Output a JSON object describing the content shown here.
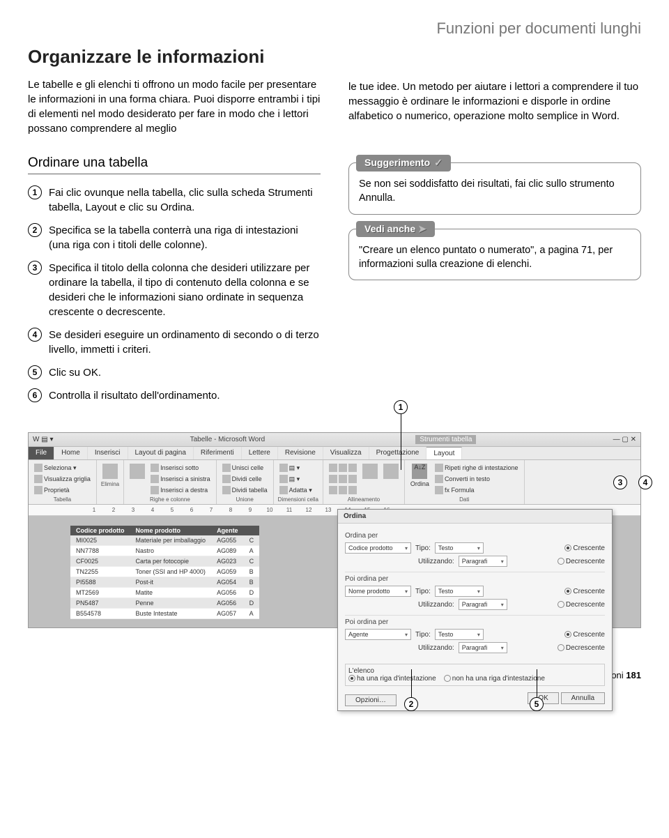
{
  "chapter_title": "Funzioni per documenti lunghi",
  "heading": "Organizzare le informazioni",
  "intro_left": "Le tabelle e gli elenchi ti offrono un modo facile per presentare le informazioni in una forma chiara. Puoi disporre entrambi i tipi di elementi nel modo desiderato per fare in modo che i lettori possano comprendere al meglio",
  "intro_right": "le tue idee. Un metodo per aiutare i lettori a comprendere il tuo messaggio è ordinare le informazioni e disporle in ordine alfabetico o numerico, operazione molto semplice in Word.",
  "section_title": "Ordinare una tabella",
  "steps": [
    "Fai clic ovunque nella tabella, clic sulla scheda Strumenti tabella, Layout e clic su Ordina.",
    "Specifica se la tabella conterrà una riga di intestazioni (una riga con i titoli delle colonne).",
    "Specifica il titolo della colonna che desideri utilizzare per ordinare la tabella, il tipo di contenuto della colonna e se desideri che le informazioni siano ordinate in sequenza crescente o decrescente.",
    "Se desideri eseguire un ordinamento di secondo o di terzo livello, immetti i criteri.",
    "Clic su OK.",
    "Controlla il risultato dell'ordinamento."
  ],
  "tip": {
    "label": "Suggerimento",
    "body": "Se non sei soddisfatto dei risultati, fai clic sullo strumento Annulla."
  },
  "see": {
    "label": "Vedi anche",
    "body": "\"Creare un elenco puntato o numerato\", a pagina 71, per informazioni sulla creazione di elenchi."
  },
  "word": {
    "title": "Tabelle - Microsoft Word",
    "context_tab": "Strumenti tabella",
    "tabs": [
      "File",
      "Home",
      "Inserisci",
      "Layout di pagina",
      "Riferimenti",
      "Lettere",
      "Revisione",
      "Visualizza",
      "Progettazione",
      "Layout"
    ],
    "ribbon_groups": {
      "tabella": {
        "cmds": [
          "Seleziona ▾",
          "Visualizza griglia",
          "Proprietà"
        ],
        "name": "Tabella"
      },
      "elimina": {
        "name": "",
        "btn": "Elimina"
      },
      "righe": {
        "cmds": [
          "Inserisci sopra",
          "Inserisci sotto",
          "Inserisci a sinistra",
          "Inserisci a destra"
        ],
        "name": "Righe e colonne"
      },
      "unione": {
        "cmds": [
          "Unisci celle",
          "Dividi celle",
          "Dividi tabella"
        ],
        "name": "Unione"
      },
      "dimensioni": {
        "name": "Dimensioni cella",
        "btn": "Adatta ▾"
      },
      "allinea": {
        "name": "Allineamento",
        "cmds": [
          "Orientamento testo",
          "Margini cella"
        ]
      },
      "dati": {
        "cmds": [
          "Ordina",
          "Ripeti righe di intestazione",
          "Converti in testo",
          "fx Formula"
        ],
        "name": "Dati"
      }
    },
    "ruler_max": 16,
    "table": {
      "headers": [
        "Codice prodotto",
        "Nome prodotto",
        "Agente",
        ""
      ],
      "rows": [
        [
          "MI0025",
          "Materiale per imballaggio",
          "AG055",
          "C"
        ],
        [
          "NN7788",
          "Nastro",
          "AG089",
          "A"
        ],
        [
          "CF0025",
          "Carta per fotocopie",
          "AG023",
          "C"
        ],
        [
          "TN2255",
          "Toner (SSI and HP 4000)",
          "AG059",
          "B"
        ],
        [
          "PI5588",
          "Post-it",
          "AG054",
          "B"
        ],
        [
          "MT2569",
          "Matite",
          "AG056",
          "D"
        ],
        [
          "PN5487",
          "Penne",
          "AG056",
          "D"
        ],
        [
          "B554578",
          "Buste Intestate",
          "AG057",
          "A"
        ]
      ]
    }
  },
  "dialog": {
    "title": "Ordina",
    "groups": [
      {
        "label": "Ordina per",
        "key": "Codice prodotto",
        "tipo": "Testo",
        "util": "Paragrafi",
        "cresc": "Crescente",
        "decr": "Decrescente",
        "sel": "cresc"
      },
      {
        "label": "Poi ordina per",
        "key": "Nome prodotto",
        "tipo": "Testo",
        "util": "Paragrafi",
        "cresc": "Crescente",
        "decr": "Decrescente",
        "sel": "cresc"
      },
      {
        "label": "Poi ordina per",
        "key": "Agente",
        "tipo": "Testo",
        "util": "Paragrafi",
        "cresc": "Crescente",
        "decr": "Decrescente",
        "sel": "cresc"
      }
    ],
    "labels": {
      "tipo": "Tipo:",
      "util": "Utilizzando:"
    },
    "list_label": "L'elenco",
    "has_header": "ha una riga d'intestazione",
    "no_header": "non ha una riga d'intestazione",
    "buttons": {
      "opzioni": "Opzioni…",
      "ok": "OK",
      "annulla": "Annulla"
    }
  },
  "footer": {
    "text": "Organizzare le informazioni",
    "page": "181"
  }
}
